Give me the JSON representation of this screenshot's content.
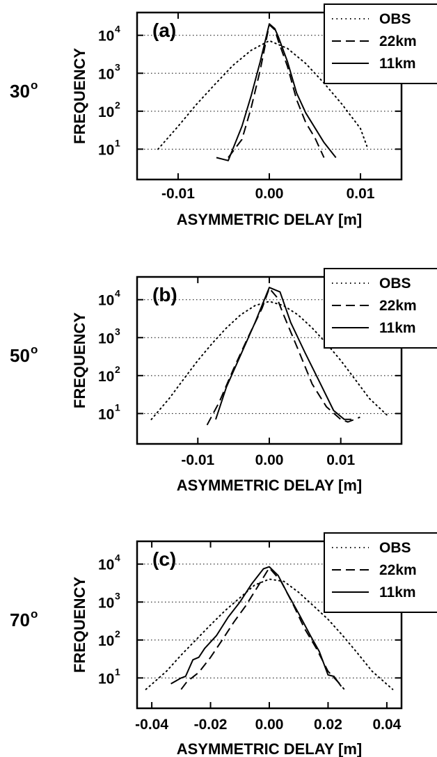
{
  "chart_data": [
    {
      "type": "line",
      "panel_label": "(a)",
      "row_label": "30",
      "row_label_sup": "o",
      "xlabel": "ASYMMETRIC DELAY [m]",
      "ylabel": "FREQUENCY",
      "xlim": [
        -0.0145,
        0.0145
      ],
      "ylim_log10": [
        0.2,
        4.6
      ],
      "y_scale": "log",
      "grid": "horizontal dotted at decades",
      "xticks": [
        -0.01,
        0.0,
        0.01
      ],
      "xtick_labels": [
        "-0.01",
        "0.00",
        "0.01"
      ],
      "yticks": [
        10,
        100,
        1000,
        10000
      ],
      "ytick_base": "10",
      "ytick_exps": [
        "1",
        "2",
        "3",
        "4"
      ],
      "legend": {
        "position": "top-right",
        "entries": [
          "OBS",
          "22km",
          "11km"
        ]
      },
      "series": [
        {
          "name": "OBS",
          "style": "dotted",
          "x": [
            -0.0122,
            -0.01,
            -0.008,
            -0.006,
            -0.004,
            -0.002,
            0.0,
            0.002,
            0.004,
            0.006,
            0.008,
            0.01,
            0.0107
          ],
          "y": [
            10,
            40,
            150,
            500,
            1600,
            4000,
            7200,
            4500,
            1800,
            550,
            150,
            35,
            12
          ]
        },
        {
          "name": "22km",
          "style": "dashed",
          "x": [
            -0.0045,
            -0.003,
            -0.002,
            -0.001,
            0.0,
            0.0006,
            0.001,
            0.002,
            0.003,
            0.004,
            0.005,
            0.006
          ],
          "y": [
            6,
            18,
            120,
            1200,
            19000,
            14000,
            7000,
            1500,
            200,
            50,
            20,
            6
          ]
        },
        {
          "name": "11km",
          "style": "solid",
          "x": [
            -0.0058,
            -0.0045,
            -0.003,
            -0.002,
            -0.001,
            0.0,
            0.0006,
            0.001,
            0.002,
            0.003,
            0.004,
            0.006,
            0.0073
          ],
          "y": [
            6,
            5,
            40,
            250,
            2000,
            20000,
            15000,
            9000,
            2000,
            300,
            90,
            15,
            6
          ]
        }
      ]
    },
    {
      "type": "line",
      "panel_label": "(b)",
      "row_label": "50",
      "row_label_sup": "o",
      "xlabel": "ASYMMETRIC DELAY [m]",
      "ylabel": "FREQUENCY",
      "xlim": [
        -0.0185,
        0.0185
      ],
      "ylim_log10": [
        0.2,
        4.6
      ],
      "y_scale": "log",
      "grid": "horizontal dotted at decades",
      "xticks": [
        -0.01,
        0.0,
        0.01
      ],
      "xtick_labels": [
        "-0.01",
        "0.00",
        "0.01"
      ],
      "yticks": [
        10,
        100,
        1000,
        10000
      ],
      "ytick_base": "10",
      "ytick_exps": [
        "1",
        "2",
        "3",
        "4"
      ],
      "legend": {
        "position": "top-right",
        "entries": [
          "OBS",
          "22km",
          "11km"
        ]
      },
      "series": [
        {
          "name": "OBS",
          "style": "dotted",
          "x": [
            -0.0165,
            -0.014,
            -0.012,
            -0.01,
            -0.008,
            -0.006,
            -0.004,
            -0.002,
            0.0,
            0.002,
            0.004,
            0.006,
            0.008,
            0.01,
            0.012,
            0.014,
            0.0165
          ],
          "y": [
            7,
            25,
            80,
            250,
            700,
            1800,
            4000,
            7000,
            9000,
            7000,
            4000,
            1800,
            700,
            250,
            80,
            25,
            9
          ]
        },
        {
          "name": "22km",
          "style": "dashed",
          "x": [
            -0.0087,
            -0.007,
            -0.005,
            -0.003,
            -0.001,
            0.0,
            0.001,
            0.002,
            0.004,
            0.006,
            0.008,
            0.01,
            0.011,
            0.0127
          ],
          "y": [
            5,
            20,
            150,
            1000,
            6000,
            20000,
            12000,
            4000,
            500,
            60,
            15,
            7,
            6,
            8
          ]
        },
        {
          "name": "11km",
          "style": "solid",
          "x": [
            -0.0075,
            -0.006,
            -0.004,
            -0.002,
            0.0,
            0.0015,
            0.003,
            0.005,
            0.007,
            0.009,
            0.0105,
            0.0115
          ],
          "y": [
            7,
            50,
            350,
            2500,
            21000,
            16000,
            2500,
            400,
            70,
            12,
            7,
            7
          ]
        }
      ]
    },
    {
      "type": "line",
      "panel_label": "(c)",
      "row_label": "70",
      "row_label_sup": "o",
      "xlabel": "ASYMMETRIC DELAY [m]",
      "ylabel": "FREQUENCY",
      "xlim": [
        -0.045,
        0.045
      ],
      "ylim_log10": [
        0.2,
        4.6
      ],
      "y_scale": "log",
      "grid": "horizontal dotted at decades",
      "xticks": [
        -0.04,
        -0.02,
        0.0,
        0.02,
        0.04
      ],
      "xtick_labels": [
        "-0.04",
        "-0.02",
        "0.00",
        "0.02",
        "0.04"
      ],
      "yticks": [
        10,
        100,
        1000,
        10000
      ],
      "ytick_base": "10",
      "ytick_exps": [
        "1",
        "2",
        "3",
        "4"
      ],
      "legend": {
        "position": "top-right",
        "entries": [
          "OBS",
          "22km",
          "11km"
        ]
      },
      "series": [
        {
          "name": "OBS",
          "style": "dotted",
          "x": [
            -0.042,
            -0.035,
            -0.03,
            -0.025,
            -0.02,
            -0.015,
            -0.01,
            -0.005,
            0.0,
            0.005,
            0.01,
            0.015,
            0.02,
            0.025,
            0.03,
            0.035,
            0.042
          ],
          "y": [
            5,
            15,
            40,
            100,
            250,
            600,
            1300,
            2800,
            4000,
            3500,
            1800,
            800,
            350,
            130,
            45,
            15,
            5
          ]
        },
        {
          "name": "22km",
          "style": "dashed",
          "x": [
            -0.03,
            -0.028,
            -0.024,
            -0.02,
            -0.016,
            -0.012,
            -0.008,
            -0.004,
            0.0,
            0.004,
            0.008,
            0.012,
            0.016,
            0.02,
            0.024,
            0.0255
          ],
          "y": [
            5,
            8,
            14,
            35,
            100,
            300,
            800,
            2500,
            8000,
            3500,
            900,
            200,
            60,
            15,
            7,
            5
          ]
        },
        {
          "name": "11km",
          "style": "solid",
          "x": [
            -0.0335,
            -0.03,
            -0.0285,
            -0.026,
            -0.024,
            -0.022,
            -0.018,
            -0.014,
            -0.01,
            -0.006,
            -0.002,
            0.0,
            0.003,
            0.006,
            0.01,
            0.014,
            0.017,
            0.02,
            0.022,
            0.0245
          ],
          "y": [
            7,
            10,
            11,
            30,
            35,
            60,
            130,
            400,
            1000,
            3000,
            7500,
            8500,
            5000,
            1800,
            500,
            130,
            50,
            12,
            11,
            6
          ]
        }
      ]
    }
  ]
}
